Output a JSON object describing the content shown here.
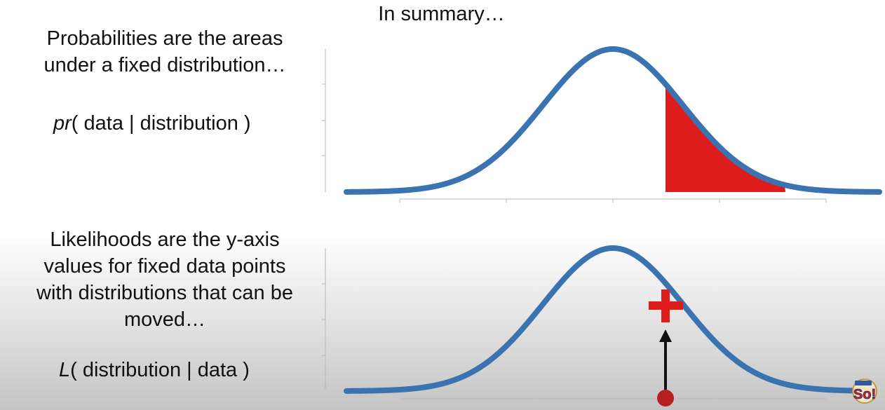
{
  "title": "In summary…",
  "top_panel": {
    "text": "Probabilities are the areas under a fixed distribution…",
    "line1": "Probabilities are the areas",
    "line2": "under a fixed distribution…",
    "formula_italic": "pr",
    "formula_rest": "( data | distribution )"
  },
  "bottom_panel": {
    "line1": "Likelihoods are the y-axis",
    "line2": "values for fixed data points",
    "line3": "with distributions that can be",
    "line4": "moved…",
    "formula_italic": "L",
    "formula_rest": "( distribution | data )"
  },
  "colors": {
    "curve": "#3a73b0",
    "highlight": "#dd1c1c",
    "dot": "#b51f1f",
    "arrow": "#111111",
    "axis": "#b8b8b8"
  },
  "logo_text": "So!"
}
